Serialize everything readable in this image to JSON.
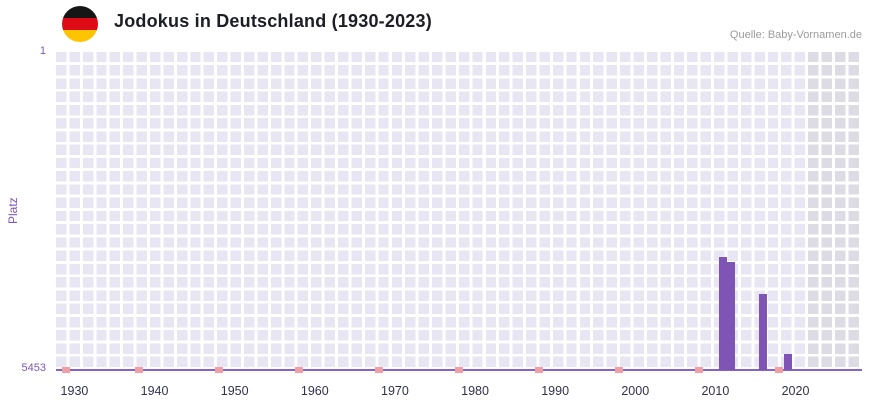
{
  "header": {
    "title": "Jodokus in Deutschland (1930-2023)",
    "source": "Quelle: Baby-Vornamen.de"
  },
  "chart_data": {
    "type": "bar",
    "title": "Jodokus in Deutschland (1930-2023)",
    "ylabel": "Platz",
    "xlabel": "",
    "grid": true,
    "y_axis": {
      "min": 1,
      "max": 5453,
      "inverted": true,
      "top_label": "1",
      "bottom_label": "5453"
    },
    "x_axis": {
      "domain": [
        1927.7,
        2028.3
      ],
      "ticks": [
        "1930",
        "1940",
        "1950",
        "1960",
        "1970",
        "1980",
        "1990",
        "2000",
        "2010",
        "2020"
      ]
    },
    "bars": [
      {
        "year": 2011,
        "rank": 3515
      },
      {
        "year": 2012,
        "rank": 3600
      },
      {
        "year": 2016,
        "rank": 4150
      },
      {
        "year": 2019,
        "rank": 5180
      }
    ],
    "no_data_marker_years": [
      1929,
      1938,
      1948,
      1958,
      1968,
      1978,
      1988,
      1998,
      2008,
      2018
    ],
    "shaded_region": {
      "start_year": 2021.4
    },
    "colors": {
      "bar": "#7e55b5",
      "axis_line": "#8a62c2",
      "no_data_marker": "#f09fa5",
      "plot_background": "#e9e6f3",
      "shaded_background": "#dddce4",
      "grid_line": "#ffffff",
      "y_label": "#7d55b8",
      "x_tick_label": "#32324e"
    }
  }
}
